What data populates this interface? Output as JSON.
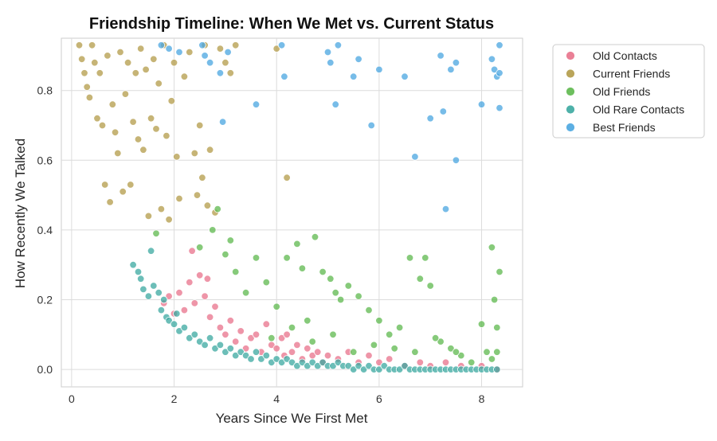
{
  "chart_data": {
    "type": "scatter",
    "title": "Friendship Timeline: When We Met vs. Current Status",
    "xlabel": "Years Since We First Met",
    "ylabel": "How Recently We Talked",
    "xlim": [
      -0.2,
      8.8
    ],
    "ylim": [
      -0.05,
      0.95
    ],
    "xticks": [
      0,
      2,
      4,
      6,
      8
    ],
    "yticks": [
      0.0,
      0.2,
      0.4,
      0.6,
      0.8
    ],
    "xtick_labels": [
      "0",
      "2",
      "4",
      "6",
      "8"
    ],
    "ytick_labels": [
      "0.0",
      "0.2",
      "0.4",
      "0.6",
      "0.8"
    ],
    "grid": true,
    "legend_placement": "outside-top-right",
    "series": [
      {
        "name": "Old Contacts",
        "color": "#e8728b",
        "points": [
          [
            1.8,
            0.19
          ],
          [
            1.9,
            0.21
          ],
          [
            2.0,
            0.16
          ],
          [
            2.1,
            0.22
          ],
          [
            2.2,
            0.17
          ],
          [
            2.3,
            0.25
          ],
          [
            2.35,
            0.34
          ],
          [
            2.4,
            0.19
          ],
          [
            2.5,
            0.27
          ],
          [
            2.6,
            0.21
          ],
          [
            2.65,
            0.26
          ],
          [
            2.7,
            0.15
          ],
          [
            2.8,
            0.18
          ],
          [
            2.9,
            0.12
          ],
          [
            3.0,
            0.1
          ],
          [
            3.1,
            0.14
          ],
          [
            3.2,
            0.08
          ],
          [
            3.3,
            0.11
          ],
          [
            3.4,
            0.06
          ],
          [
            3.5,
            0.09
          ],
          [
            3.6,
            0.1
          ],
          [
            3.7,
            0.05
          ],
          [
            3.8,
            0.13
          ],
          [
            3.9,
            0.07
          ],
          [
            4.0,
            0.06
          ],
          [
            4.1,
            0.09
          ],
          [
            4.15,
            0.04
          ],
          [
            4.2,
            0.1
          ],
          [
            4.3,
            0.05
          ],
          [
            4.4,
            0.07
          ],
          [
            4.5,
            0.03
          ],
          [
            4.6,
            0.06
          ],
          [
            4.7,
            0.04
          ],
          [
            4.8,
            0.05
          ],
          [
            4.9,
            0.02
          ],
          [
            5.0,
            0.04
          ],
          [
            5.2,
            0.03
          ],
          [
            5.4,
            0.05
          ],
          [
            5.6,
            0.02
          ],
          [
            5.8,
            0.04
          ],
          [
            6.0,
            0.02
          ],
          [
            6.2,
            0.03
          ],
          [
            6.5,
            0.01
          ],
          [
            6.8,
            0.02
          ],
          [
            7.0,
            0.01
          ],
          [
            7.3,
            0.02
          ],
          [
            7.6,
            0.01
          ],
          [
            8.0,
            0.01
          ],
          [
            8.3,
            0.0
          ]
        ]
      },
      {
        "name": "Current Friends",
        "color": "#b39b48",
        "points": [
          [
            0.15,
            0.93
          ],
          [
            0.2,
            0.89
          ],
          [
            0.25,
            0.85
          ],
          [
            0.3,
            0.81
          ],
          [
            0.35,
            0.78
          ],
          [
            0.4,
            0.93
          ],
          [
            0.45,
            0.88
          ],
          [
            0.5,
            0.72
          ],
          [
            0.55,
            0.85
          ],
          [
            0.6,
            0.7
          ],
          [
            0.65,
            0.53
          ],
          [
            0.7,
            0.9
          ],
          [
            0.75,
            0.48
          ],
          [
            0.8,
            0.76
          ],
          [
            0.85,
            0.68
          ],
          [
            0.9,
            0.62
          ],
          [
            0.95,
            0.91
          ],
          [
            1.0,
            0.51
          ],
          [
            1.05,
            0.79
          ],
          [
            1.1,
            0.88
          ],
          [
            1.15,
            0.53
          ],
          [
            1.2,
            0.71
          ],
          [
            1.25,
            0.85
          ],
          [
            1.3,
            0.66
          ],
          [
            1.35,
            0.92
          ],
          [
            1.4,
            0.63
          ],
          [
            1.45,
            0.86
          ],
          [
            1.5,
            0.44
          ],
          [
            1.55,
            0.72
          ],
          [
            1.6,
            0.89
          ],
          [
            1.65,
            0.69
          ],
          [
            1.7,
            0.82
          ],
          [
            1.75,
            0.46
          ],
          [
            1.8,
            0.93
          ],
          [
            1.85,
            0.67
          ],
          [
            1.9,
            0.43
          ],
          [
            1.95,
            0.77
          ],
          [
            2.0,
            0.88
          ],
          [
            2.05,
            0.61
          ],
          [
            2.1,
            0.49
          ],
          [
            2.2,
            0.84
          ],
          [
            2.3,
            0.91
          ],
          [
            2.4,
            0.62
          ],
          [
            2.45,
            0.5
          ],
          [
            2.5,
            0.7
          ],
          [
            2.55,
            0.55
          ],
          [
            2.6,
            0.93
          ],
          [
            2.65,
            0.47
          ],
          [
            2.7,
            0.63
          ],
          [
            2.8,
            0.45
          ],
          [
            2.9,
            0.92
          ],
          [
            3.0,
            0.88
          ],
          [
            3.1,
            0.85
          ],
          [
            3.2,
            0.93
          ],
          [
            4.0,
            0.92
          ],
          [
            4.2,
            0.55
          ]
        ]
      },
      {
        "name": "Old Friends",
        "color": "#5db84d",
        "points": [
          [
            1.65,
            0.39
          ],
          [
            2.5,
            0.35
          ],
          [
            2.75,
            0.4
          ],
          [
            2.85,
            0.46
          ],
          [
            3.0,
            0.33
          ],
          [
            3.1,
            0.37
          ],
          [
            3.2,
            0.28
          ],
          [
            3.4,
            0.22
          ],
          [
            3.6,
            0.32
          ],
          [
            3.8,
            0.25
          ],
          [
            4.0,
            0.18
          ],
          [
            4.2,
            0.32
          ],
          [
            4.4,
            0.36
          ],
          [
            4.5,
            0.29
          ],
          [
            4.6,
            0.14
          ],
          [
            4.75,
            0.38
          ],
          [
            4.9,
            0.28
          ],
          [
            5.05,
            0.26
          ],
          [
            5.15,
            0.22
          ],
          [
            5.25,
            0.2
          ],
          [
            5.4,
            0.24
          ],
          [
            5.6,
            0.21
          ],
          [
            5.8,
            0.17
          ],
          [
            6.0,
            0.14
          ],
          [
            6.2,
            0.1
          ],
          [
            6.4,
            0.12
          ],
          [
            6.6,
            0.32
          ],
          [
            6.8,
            0.26
          ],
          [
            6.9,
            0.32
          ],
          [
            7.0,
            0.24
          ],
          [
            7.2,
            0.08
          ],
          [
            7.4,
            0.06
          ],
          [
            7.6,
            0.04
          ],
          [
            8.0,
            0.13
          ],
          [
            8.1,
            0.05
          ],
          [
            8.2,
            0.35
          ],
          [
            8.25,
            0.2
          ],
          [
            8.3,
            0.12
          ],
          [
            8.35,
            0.28
          ],
          [
            8.3,
            0.05
          ],
          [
            8.2,
            0.03
          ],
          [
            7.8,
            0.02
          ],
          [
            7.5,
            0.05
          ],
          [
            7.1,
            0.09
          ],
          [
            6.7,
            0.05
          ],
          [
            6.3,
            0.06
          ],
          [
            5.9,
            0.07
          ],
          [
            5.5,
            0.05
          ],
          [
            5.1,
            0.1
          ],
          [
            4.7,
            0.08
          ],
          [
            4.3,
            0.12
          ],
          [
            3.9,
            0.09
          ]
        ]
      },
      {
        "name": "Old Rare Contacts",
        "color": "#3ba8a0",
        "points": [
          [
            1.2,
            0.3
          ],
          [
            1.3,
            0.28
          ],
          [
            1.35,
            0.26
          ],
          [
            1.4,
            0.23
          ],
          [
            1.5,
            0.21
          ],
          [
            1.55,
            0.34
          ],
          [
            1.6,
            0.24
          ],
          [
            1.7,
            0.22
          ],
          [
            1.75,
            0.17
          ],
          [
            1.8,
            0.2
          ],
          [
            1.85,
            0.15
          ],
          [
            1.9,
            0.14
          ],
          [
            2.0,
            0.13
          ],
          [
            2.05,
            0.16
          ],
          [
            2.1,
            0.11
          ],
          [
            2.2,
            0.12
          ],
          [
            2.3,
            0.09
          ],
          [
            2.4,
            0.1
          ],
          [
            2.5,
            0.08
          ],
          [
            2.6,
            0.07
          ],
          [
            2.7,
            0.09
          ],
          [
            2.8,
            0.06
          ],
          [
            2.9,
            0.07
          ],
          [
            3.0,
            0.05
          ],
          [
            3.1,
            0.06
          ],
          [
            3.2,
            0.04
          ],
          [
            3.3,
            0.05
          ],
          [
            3.4,
            0.04
          ],
          [
            3.5,
            0.03
          ],
          [
            3.6,
            0.05
          ],
          [
            3.7,
            0.03
          ],
          [
            3.8,
            0.04
          ],
          [
            3.9,
            0.02
          ],
          [
            4.0,
            0.03
          ],
          [
            4.1,
            0.02
          ],
          [
            4.2,
            0.03
          ],
          [
            4.3,
            0.02
          ],
          [
            4.4,
            0.01
          ],
          [
            4.5,
            0.02
          ],
          [
            4.6,
            0.01
          ],
          [
            4.7,
            0.02
          ],
          [
            4.8,
            0.01
          ],
          [
            4.9,
            0.02
          ],
          [
            5.0,
            0.01
          ],
          [
            5.1,
            0.01
          ],
          [
            5.2,
            0.02
          ],
          [
            5.3,
            0.01
          ],
          [
            5.4,
            0.01
          ],
          [
            5.5,
            0.0
          ],
          [
            5.6,
            0.01
          ],
          [
            5.7,
            0.0
          ],
          [
            5.8,
            0.01
          ],
          [
            5.9,
            0.0
          ],
          [
            6.0,
            0.0
          ],
          [
            6.1,
            0.01
          ],
          [
            6.2,
            0.0
          ],
          [
            6.3,
            0.0
          ],
          [
            6.4,
            0.0
          ],
          [
            6.5,
            0.01
          ],
          [
            6.6,
            0.0
          ],
          [
            6.7,
            0.0
          ],
          [
            6.8,
            0.0
          ],
          [
            6.9,
            0.0
          ],
          [
            7.0,
            0.0
          ],
          [
            7.1,
            0.0
          ],
          [
            7.2,
            0.0
          ],
          [
            7.3,
            0.0
          ],
          [
            7.4,
            0.0
          ],
          [
            7.5,
            0.0
          ],
          [
            7.6,
            0.0
          ],
          [
            7.7,
            0.0
          ],
          [
            7.8,
            0.0
          ],
          [
            7.9,
            0.0
          ],
          [
            8.0,
            0.0
          ],
          [
            8.1,
            0.0
          ],
          [
            8.2,
            0.0
          ],
          [
            8.3,
            0.0
          ]
        ]
      },
      {
        "name": "Best Friends",
        "color": "#4aa6e0",
        "points": [
          [
            1.75,
            0.93
          ],
          [
            1.9,
            0.92
          ],
          [
            2.1,
            0.91
          ],
          [
            2.55,
            0.93
          ],
          [
            2.6,
            0.9
          ],
          [
            2.7,
            0.88
          ],
          [
            2.9,
            0.85
          ],
          [
            2.95,
            0.71
          ],
          [
            3.05,
            0.91
          ],
          [
            3.6,
            0.76
          ],
          [
            4.1,
            0.93
          ],
          [
            4.15,
            0.84
          ],
          [
            5.0,
            0.91
          ],
          [
            5.05,
            0.88
          ],
          [
            5.15,
            0.76
          ],
          [
            5.2,
            0.93
          ],
          [
            5.5,
            0.84
          ],
          [
            5.6,
            0.89
          ],
          [
            5.85,
            0.7
          ],
          [
            6.0,
            0.86
          ],
          [
            6.5,
            0.84
          ],
          [
            6.7,
            0.61
          ],
          [
            7.0,
            0.72
          ],
          [
            7.2,
            0.9
          ],
          [
            7.25,
            0.74
          ],
          [
            7.3,
            0.46
          ],
          [
            7.4,
            0.86
          ],
          [
            7.5,
            0.6
          ],
          [
            7.5,
            0.88
          ],
          [
            8.0,
            0.76
          ],
          [
            8.2,
            0.89
          ],
          [
            8.25,
            0.86
          ],
          [
            8.3,
            0.84
          ],
          [
            8.35,
            0.93
          ],
          [
            8.35,
            0.85
          ],
          [
            8.35,
            0.75
          ]
        ]
      }
    ]
  }
}
